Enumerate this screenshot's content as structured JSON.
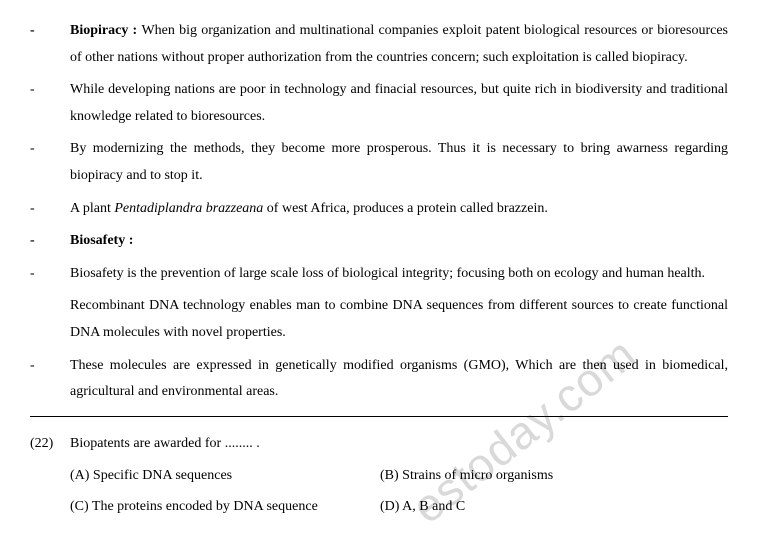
{
  "bullets": [
    {
      "dashStyle": "bold",
      "prefixBold": "Biopiracy : ",
      "text": "When big organization and multinational companies exploit patent biological resources or bioresources of other nations without proper authorization from the countries concern; such exploitation is called biopiracy."
    },
    {
      "dashStyle": "light",
      "prefixBold": "",
      "text": "While developing nations are poor in technology and finacial resources, but quite rich in biodiversity and traditional knowledge related to bioresources."
    },
    {
      "dashStyle": "light",
      "prefixBold": "",
      "text": " By modernizing the methods, they become more prosperous. Thus it is necessary to bring awarness regarding biopiracy and to stop it."
    },
    {
      "dashStyle": "light",
      "prefixBold": "",
      "prePlain": "A plant ",
      "italic": "Pentadiplandra brazzeana",
      "postPlain": " of west Africa, produces a protein called brazzein."
    },
    {
      "dashStyle": "bold",
      "prefixBold": "Biosafety :",
      "text": ""
    },
    {
      "dashStyle": "light",
      "prefixBold": "",
      "text": "Biosafety is the prevention of large scale loss of biological integrity; focusing both on ecology and human health."
    },
    {
      "dashStyle": "none",
      "prefixBold": "",
      "text": "Recombinant DNA technology enables man to combine DNA sequences from different sources to create functional DNA molecules with novel properties."
    },
    {
      "dashStyle": "light",
      "prefixBold": "",
      "text": "These molecules are expressed in genetically modified organisms (GMO), Which are then used in biomedical, agricultural and environmental areas."
    }
  ],
  "question": {
    "number": "(22)",
    "text": "Biopatents are awarded for ........ .",
    "options": {
      "a": "(A) Specific DNA sequences",
      "b": "(B) Strains of micro organisms",
      "c": "(C) The proteins encoded by DNA sequence",
      "d": "(D) A, B and C"
    }
  },
  "watermark": "estoday.com"
}
